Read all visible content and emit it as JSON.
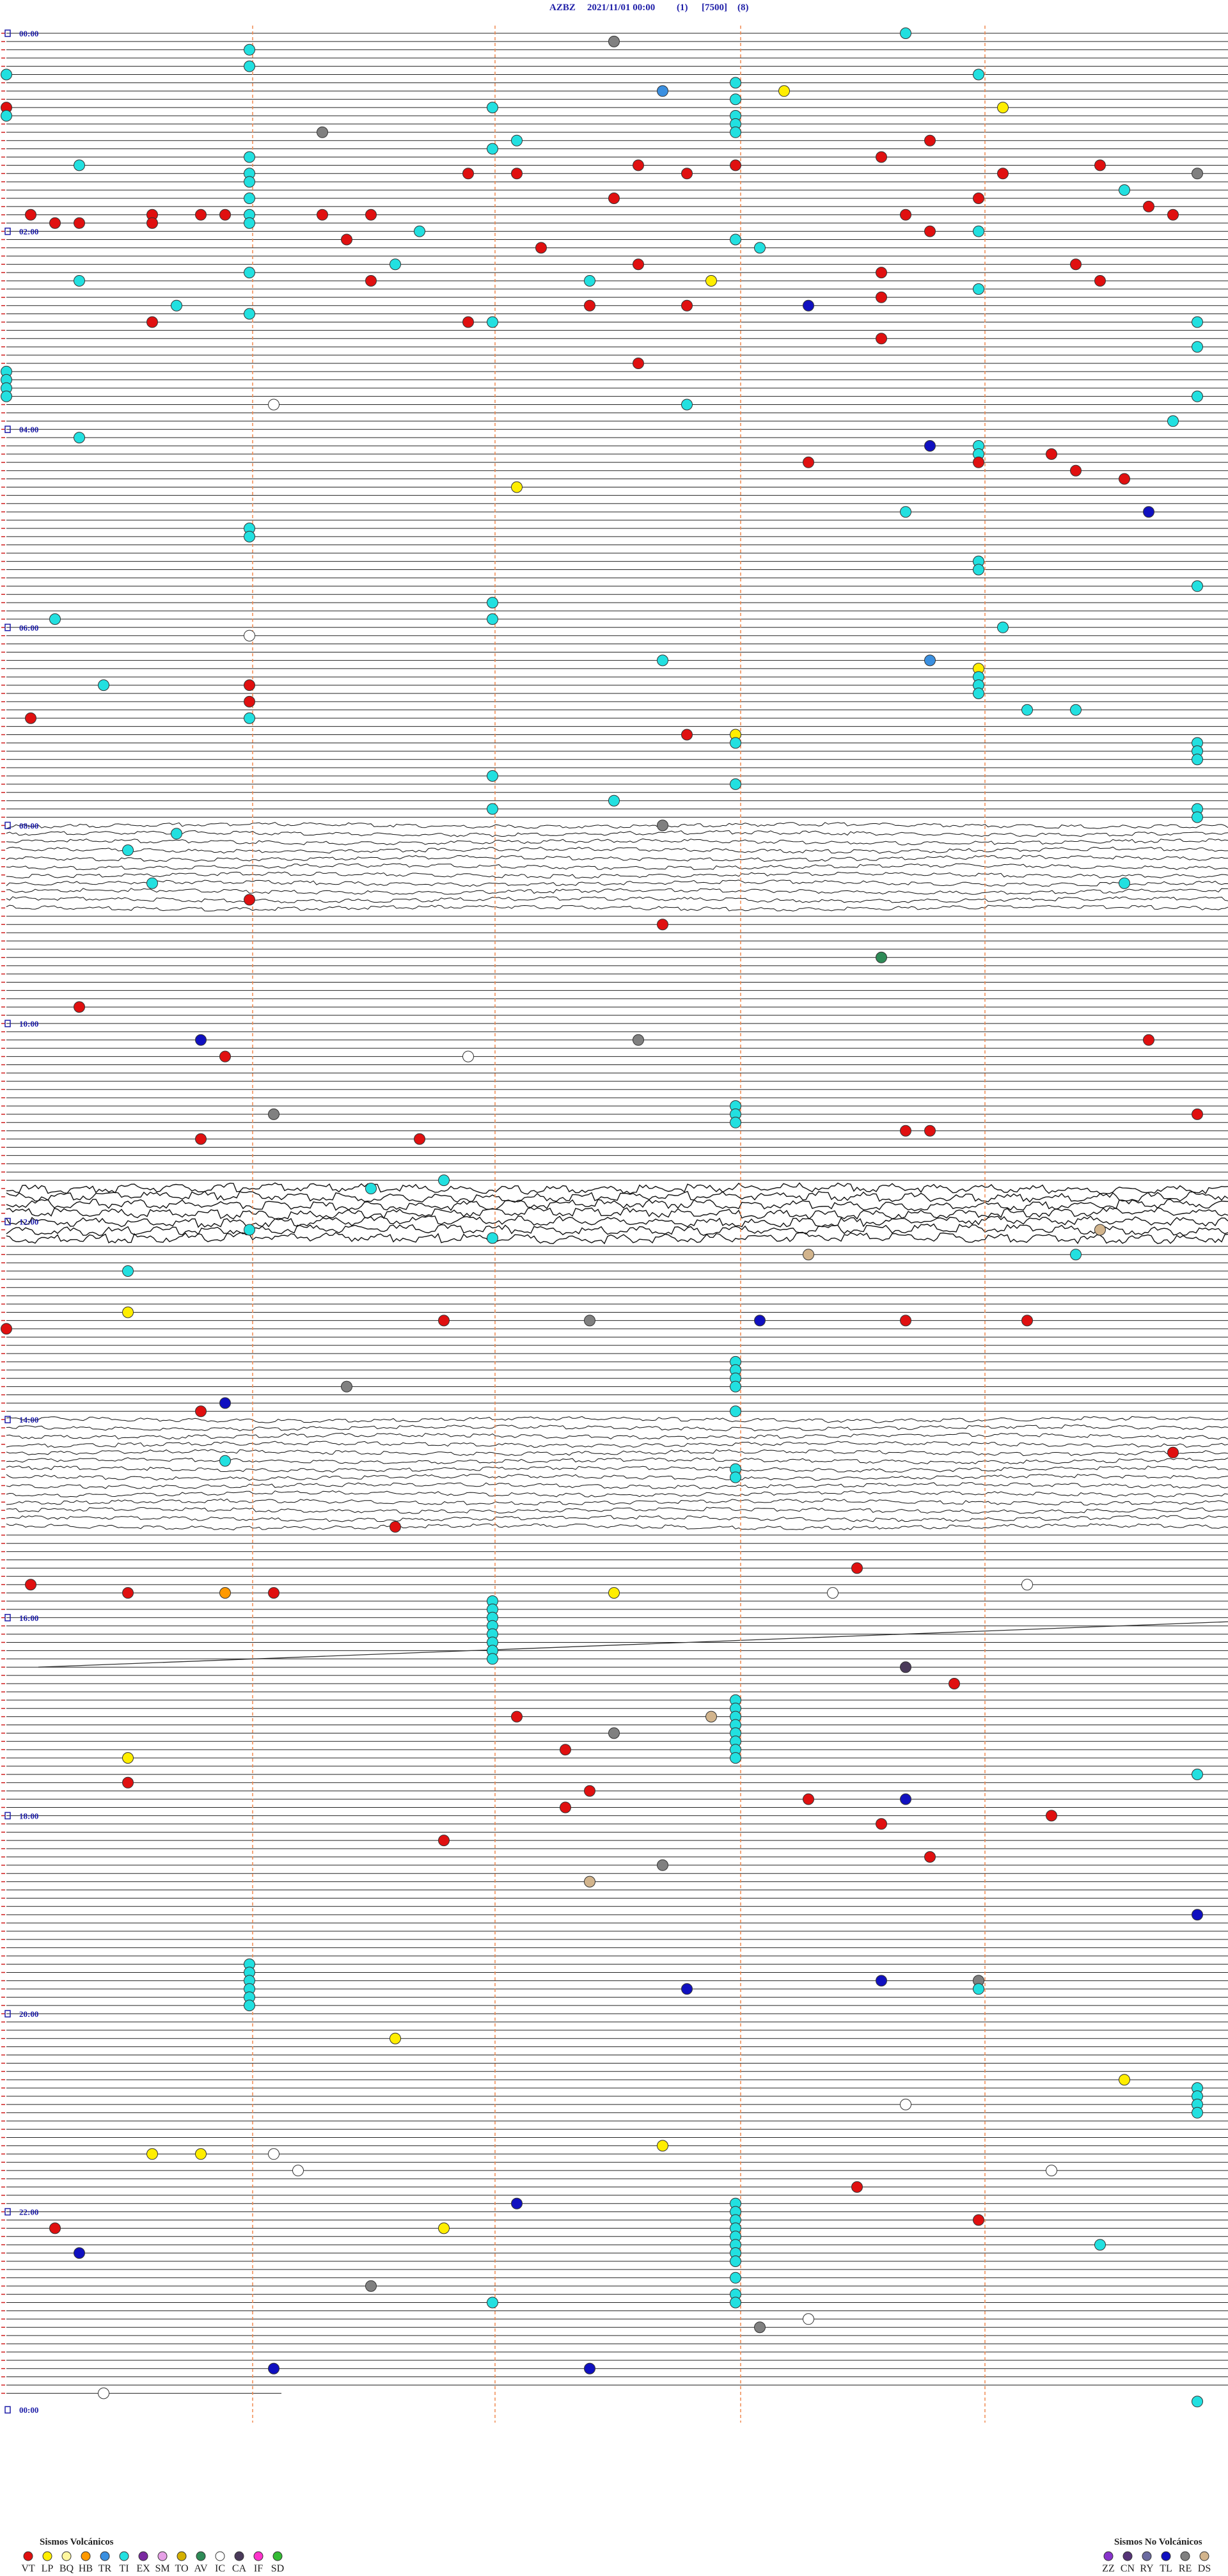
{
  "header": {
    "station": "AZBZ",
    "datetime": "2021/11/01 00:00",
    "channel": "(1)",
    "scale": "[7500]",
    "filter": "(8)"
  },
  "hour_labels": [
    "00:00",
    "02:00",
    "04:00",
    "06:00",
    "08:00",
    "10:00",
    "12:00",
    "14:00",
    "16:00",
    "18:00",
    "20:00",
    "22:00",
    "00:00"
  ],
  "legend": {
    "volcanic_title": "Sismos Volcánicos",
    "volcanic": [
      {
        "code": "VT",
        "color": "#e01010"
      },
      {
        "code": "LP",
        "color": "#ffee00"
      },
      {
        "code": "BQ",
        "color": "#fff7a0"
      },
      {
        "code": "HB",
        "color": "#ff9900"
      },
      {
        "code": "TR",
        "color": "#3a8fe0"
      },
      {
        "code": "TI",
        "color": "#22e0e0"
      },
      {
        "code": "EX",
        "color": "#7a2aa0"
      },
      {
        "code": "SM",
        "color": "#e6a0e6"
      },
      {
        "code": "TO",
        "color": "#d4b000"
      },
      {
        "code": "AV",
        "color": "#2e8b57"
      },
      {
        "code": "IC",
        "color": "#ffffff"
      },
      {
        "code": "CA",
        "color": "#4a3a5a"
      },
      {
        "code": "IF",
        "color": "#ff33cc"
      },
      {
        "code": "SD",
        "color": "#33bb33"
      }
    ],
    "non_volcanic_title": "Sismos No Volcánicos",
    "non_volcanic": [
      {
        "code": "ZZ",
        "color": "#8833cc"
      },
      {
        "code": "CN",
        "color": "#553377"
      },
      {
        "code": "RY",
        "color": "#6a6aa0"
      },
      {
        "code": "TL",
        "color": "#1010c0"
      },
      {
        "code": "RE",
        "color": "#808080"
      },
      {
        "code": "DS",
        "color": "#d2b48c"
      }
    ]
  },
  "events": {
    "types": [
      "TI",
      "TI",
      "RE",
      "TI",
      "TI",
      "TI",
      "TI",
      "TR",
      "LP",
      "TI",
      "TI",
      "LP",
      "VT",
      "TI",
      "TI",
      "TI",
      "TI",
      "RE",
      "TI",
      "TI",
      "VT",
      "TI",
      "VT",
      "TI",
      "VT",
      "VT",
      "VT",
      "TI",
      "VT",
      "VT",
      "VT",
      "VT",
      "RE",
      "TI",
      "TI",
      "VT",
      "VT",
      "TI",
      "VT",
      "VT",
      "VT",
      "VT",
      "VT",
      "TI",
      "VT",
      "VT",
      "VT",
      "VT",
      "VT",
      "VT",
      "VT",
      "TI",
      "TI",
      "VT",
      "TI",
      "TI",
      "VT",
      "VT",
      "TI",
      "TI",
      "VT",
      "VT",
      "VT",
      "TI",
      "VT",
      "TI",
      "VT",
      "TI",
      "VT",
      "TI",
      "LP",
      "VT",
      "TI",
      "VT",
      "TI",
      "VT",
      "VT",
      "TL",
      "TI",
      "VT",
      "VT",
      "TI",
      "TI",
      "VT",
      "VT",
      "TI",
      "TI",
      "TI",
      "TI",
      "IC",
      "TI",
      "TI",
      "TI",
      "TL",
      "TI",
      "TI",
      "TI",
      "VT",
      "VT",
      "VT",
      "LP",
      "TI",
      "TL",
      "TI",
      "TI",
      "TI",
      "TI",
      "TI",
      "TI",
      "TI",
      "TI",
      "TI",
      "IC",
      "TI",
      "TR",
      "LP",
      "TI",
      "TI",
      "TI",
      "TI",
      "VT",
      "VT",
      "TI",
      "TI",
      "VT",
      "VT",
      "TI",
      "LP",
      "TI",
      "TI",
      "TI",
      "TI",
      "TI",
      "TI",
      "TI",
      "TI",
      "TI",
      "RE",
      "TI",
      "TI",
      "TI",
      "TI",
      "TI",
      "VT",
      "VT",
      "AV",
      "VT",
      "TL",
      "RE",
      "VT",
      "VT",
      "IC",
      "RE",
      "VT",
      "VT",
      "VT",
      "VT",
      "VT",
      "TI",
      "TI",
      "TI",
      "DS",
      "TI",
      "DS",
      "TI",
      "TI",
      "LP",
      "VT",
      "RE",
      "TL",
      "VT",
      "VT",
      "VT",
      "RE",
      "TL",
      "VT",
      "VT",
      "TI",
      "VT",
      "VT",
      "VT",
      "VT",
      "HB",
      "VT",
      "LP",
      "IC",
      "IC",
      "CA",
      "VT",
      "VT",
      "DS",
      "RE",
      "VT",
      "LP",
      "TI",
      "VT",
      "VT",
      "VT",
      "TL",
      "VT",
      "VT",
      "VT",
      "VT",
      "VT",
      "RE",
      "DS",
      "TL",
      "TL",
      "RE",
      "TL",
      "LP",
      "LP",
      "IC",
      "LP",
      "LP",
      "LP",
      "IC",
      "IC",
      "IC",
      "VT",
      "TL",
      "VT",
      "VT",
      "LP",
      "TI",
      "TL",
      "RE",
      "TI",
      "IC",
      "RE",
      "TL",
      "TL",
      "IC",
      "TI",
      "TI",
      "TI",
      "TI",
      "TI",
      "TI",
      "TI",
      "TI",
      "TI",
      "TI",
      "TI",
      "TI",
      "TI",
      "TI",
      "TI",
      "TI",
      "TI",
      "TI",
      "TI",
      "TI",
      "TI",
      "TI",
      "TI",
      "TI",
      "TI",
      "TI",
      "TI",
      "TI",
      "TI",
      "TI",
      "TI",
      "TI",
      "TI",
      "TI",
      "TI",
      "TI",
      "TI",
      "TI",
      "TI",
      "TI",
      "TI",
      "TI",
      "TI",
      "TI",
      "TI",
      "TI",
      "TI",
      "TI",
      "TI",
      "TI",
      "TI",
      "TI",
      "TI"
    ],
    "minutes": [
      3.7,
      11.0,
      7.5,
      21.0,
      25.0,
      29.0,
      33.0,
      37.7,
      38.2,
      43.0,
      47.0,
      49.1,
      45.0,
      50.0,
      53.0,
      58.0,
      63.0,
      61.3,
      67.1,
      72.0,
      68.8,
      76.0,
      78.6,
      80.3,
      82.6,
      83.0,
      84.5,
      86.0,
      86.9,
      87.1,
      87.8,
      89.1,
      89.9,
      91.0,
      99.6,
      102.5,
      104.0,
      101.0,
      109.7,
      110.1,
      110.6,
      110.8,
      110.9,
      111.0,
      111.3,
      111.5,
      113.7,
      114.8,
      115.2,
      115.3,
      115.6,
      116.0,
      121.7,
      123.8,
      124.0,
      128.0,
      126.4,
      132.2,
      133.1,
      141.6,
      142.6,
      144.4,
      148.6,
      146.0,
      151.5,
      150.3,
      154.5,
      152.4,
      163.6,
      159.0,
      152.9,
      167.4,
      165.7,
      167.8,
      171.0,
      175.6,
      176.9,
      168.3,
      177.0,
      188.6,
      202.6,
      179.9,
      194.9,
      259.3,
      263.3,
      205.0,
      210.0,
      215.0,
      220.0,
      226.1,
      224.9,
      227.8,
      239.8,
      253.8,
      245.3,
      254.0,
      259.0,
      269.4,
      264.0,
      274.6,
      277.1,
      293.7,
      294.7,
      301.0,
      306.0,
      324.0,
      329.0,
      339.9,
      347.0,
      357.0,
      355.2,
      364.1,
      366.0,
      382.7,
      383.8,
      389.0,
      394.0,
      399.0,
      404.0,
      395.4,
      396.0,
      406.0,
      414.2,
      414.4,
      415.1,
      427.8,
      416.0,
      428.0,
      433.0,
      434.9,
      439.9,
      444.9,
      452.0,
      458.0,
      467.5,
      472.0,
      474.9,
      482.7,
      479.9,
      485.7,
      495.5,
      515.6,
      519.6,
      526.0,
      542.7,
      563.6,
      590.3,
      610.8,
      612.6,
      614.7,
      620.9,
      621.9,
      656.1,
      659.9,
      668.7,
      668.8,
      670.8,
      671.7,
      701.5,
      696.8,
      726.0,
      729.5,
      732.0,
      743.3,
      744.4,
      750.5,
      775.5,
      781.8,
      782.4,
      783.1,
      783.7,
      784.2,
      785.0,
      821.4,
      830.9,
      835.8,
      864.8,
      865.9,
      906.6,
      933.5,
      940.1,
      945.5,
      945.9,
      946.1,
      947.5,
      948.4,
      944.2,
      993.7,
      1003.9,
      1022.1,
      1022.9,
      1032.5,
      1042.3,
      1045.5,
      1059.9,
      1060.5,
      1067.4,
      1073.3,
      1073.7,
      1077.3,
      1084.3,
      1088.6,
      1096.8,
      1108.8,
      1112.7,
      1122.4,
      1144.9,
      1183.6,
      1184.0,
      1187.8,
      1216.6,
      1244.6,
      1258.7,
      1282.7,
      1285.6,
      1285.8,
      1286.1,
      1296.2,
      1299.3,
      1308.5,
      1317.1,
      1329.0,
      1330.2,
      1331.8,
      1344.5,
      1345.3,
      1366.5,
      1377.0,
      1388.3,
      1393.1,
      1416.1,
      1417.4,
      1430.4,
      1439.9,
      1013.0,
      1018.0,
      1023.0,
      1028.0,
      1033.0,
      1038.0,
      1043.0,
      1048.0,
      1171.0,
      1176.0,
      1181.0,
      1186.0,
      1191.0,
      1196.0,
      808.0,
      813.0,
      818.0,
      823.0,
      838.0,
      873.0,
      878.0,
      952.0,
      957.0,
      962.0,
      967.0,
      972.0,
      977.0,
      982.0,
      987.0,
      653.0,
      658.0,
      663.0,
      1318.0,
      1323.0,
      1328.0,
      1333.0,
      1338.0,
      1343.0,
      1348.0,
      1353.0,
      1363.0,
      1373.0,
      1378.0,
      1249.9,
      1254.9,
      1259.9,
      1264.9,
      1189.0
    ]
  }
}
